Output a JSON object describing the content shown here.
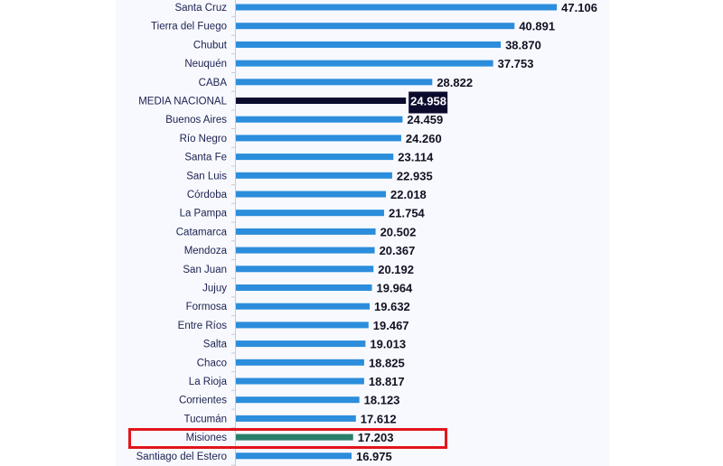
{
  "chart_data": {
    "type": "bar",
    "orientation": "horizontal",
    "title": "",
    "xlabel": "",
    "ylabel": "",
    "xlim": [
      0,
      50
    ],
    "grid": false,
    "categories": [
      "Santa Cruz",
      "Tierra del Fuego",
      "Chubut",
      "Neuquén",
      "CABA",
      "MEDIA NACIONAL",
      "Buenos Aires",
      "Río Negro",
      "Santa Fe",
      "San Luis",
      "Córdoba",
      "La Pampa",
      "Catamarca",
      "Mendoza",
      "San Juan",
      "Jujuy",
      "Formosa",
      "Entre Ríos",
      "Salta",
      "Chaco",
      "La Rioja",
      "Corrientes",
      "Tucumán",
      "Misiones",
      "Santiago del Estero"
    ],
    "values": [
      47.106,
      40.891,
      38.87,
      37.753,
      28.822,
      24.958,
      24.459,
      24.26,
      23.114,
      22.935,
      22.018,
      21.754,
      20.502,
      20.367,
      20.192,
      19.964,
      19.632,
      19.467,
      19.013,
      18.825,
      18.817,
      18.123,
      17.612,
      17.203,
      16.975
    ],
    "value_labels": [
      "47.106",
      "40.891",
      "38.870",
      "37.753",
      "28.822",
      "24.958",
      "24.459",
      "24.260",
      "23.114",
      "22.935",
      "22.018",
      "21.754",
      "20.502",
      "20.367",
      "20.192",
      "19.964",
      "19.632",
      "19.467",
      "19.013",
      "18.825",
      "18.817",
      "18.123",
      "17.612",
      "17.203",
      "16.975"
    ],
    "highlight_average": "MEDIA NACIONAL",
    "highlight_category": "Misiones",
    "colors": {
      "default": "#2b8ddb",
      "average": "#0b0b2e",
      "highlight": "#2a7f6a",
      "highlight_box": "#e2151b",
      "label": "#1c2150",
      "value": "#111122"
    }
  }
}
